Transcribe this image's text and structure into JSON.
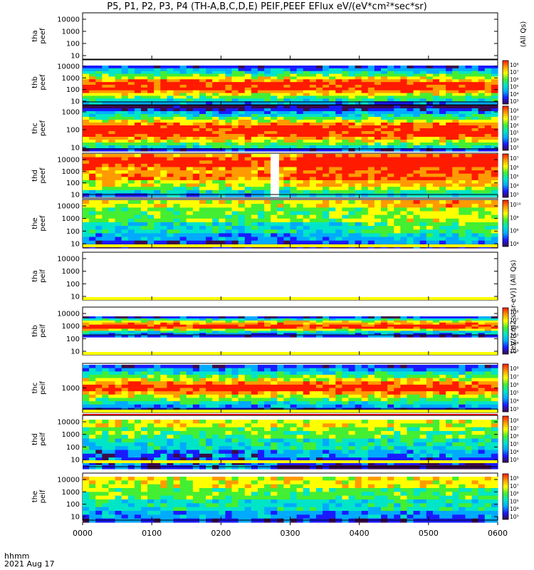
{
  "title": "P5, P1, P2, P3, P4 (TH-A,B,C,D,E) PEIF,PEEF EFlux eV/(eV*cm²*sec*sr)",
  "side_label_top": "(All Qs)",
  "side_label": "[eV/(cm2-s-sr-eV)] (All Qs)",
  "time_axis": {
    "label_line1": "hhmm",
    "label_line2": "2021 Aug 17"
  },
  "colors": {
    "fill_band": "#ffff00",
    "gap_line": "#ff0000",
    "colormap": [
      "#3b0a4a",
      "#1a1aff",
      "#00aaff",
      "#00e5c8",
      "#44ee33",
      "#ffff00",
      "#ff9a00",
      "#ff1a00"
    ]
  },
  "chart_data": {
    "type": "heatmap",
    "x_ticks": [
      "0000",
      "0100",
      "0200",
      "0300",
      "0400",
      "0500",
      "0600"
    ],
    "x_range_hours": [
      0,
      6
    ],
    "panels": [
      {
        "id": "tha-peef",
        "ylabel": [
          "tha",
          "peef"
        ],
        "y_ticks": [
          "10000",
          "1000",
          "100",
          "10"
        ],
        "has_data": false,
        "colorbar": null
      },
      {
        "id": "thb-peef",
        "ylabel": [
          "thb",
          "peef"
        ],
        "y_ticks": [
          "10000",
          "1000",
          "100",
          "10"
        ],
        "has_data": true,
        "colorbar": [
          "10⁸",
          "10⁷",
          "10⁶",
          "10⁵",
          "10⁴",
          "10³"
        ]
      },
      {
        "id": "thc-peef",
        "ylabel": [
          "thc",
          "peef"
        ],
        "y_ticks": [
          "1000",
          "100",
          "10"
        ],
        "has_data": true,
        "colorbar": [
          "10⁸",
          "10⁷",
          "10⁶",
          "10⁵",
          "10⁴",
          "10³"
        ]
      },
      {
        "id": "thd-peef",
        "ylabel": [
          "thd",
          "peef"
        ],
        "y_ticks": [
          "10000",
          "1000",
          "100",
          "10"
        ],
        "has_data": true,
        "colorbar": [
          "10⁷",
          "10⁶",
          "10⁵",
          "10⁴",
          "10³"
        ]
      },
      {
        "id": "the-peef",
        "ylabel": [
          "the",
          "peef"
        ],
        "y_ticks": [
          "10000",
          "1000",
          "100",
          "10"
        ],
        "has_data": true,
        "colorbar": [
          "10¹⁰",
          "10⁸",
          "10⁶",
          "10⁴"
        ]
      },
      {
        "id": "tha-peif",
        "ylabel": [
          "tha",
          "peif"
        ],
        "y_ticks": [
          "10000",
          "1000",
          "100",
          "10"
        ],
        "has_data": false,
        "colorbar": null
      },
      {
        "id": "thb-peif",
        "ylabel": [
          "thb",
          "peif"
        ],
        "y_ticks": [
          "10000",
          "1000",
          "100",
          "10"
        ],
        "has_data": true,
        "colorbar": [
          "10⁸",
          "10⁷",
          "10⁶",
          "10⁵",
          "10⁴",
          "10³"
        ]
      },
      {
        "id": "thc-peif",
        "ylabel": [
          "thc",
          "peif"
        ],
        "y_ticks": [
          "1000"
        ],
        "has_data": true,
        "colorbar": [
          "10⁸",
          "10⁷",
          "10⁶",
          "10⁵",
          "10⁴",
          "10³"
        ]
      },
      {
        "id": "thd-peif",
        "ylabel": [
          "thd",
          "peif"
        ],
        "y_ticks": [
          "10000",
          "1000",
          "100",
          "10"
        ],
        "has_data": true,
        "colorbar": [
          "10⁸",
          "10⁷",
          "10⁶",
          "10⁵",
          "10⁴",
          "10³"
        ]
      },
      {
        "id": "the-peif",
        "ylabel": [
          "the",
          "peif"
        ],
        "y_ticks": [
          "10000",
          "1000",
          "100",
          "10"
        ],
        "has_data": true,
        "colorbar": [
          "10⁸",
          "10⁷",
          "10⁶",
          "10⁵",
          "10⁴",
          "10³"
        ]
      }
    ]
  }
}
